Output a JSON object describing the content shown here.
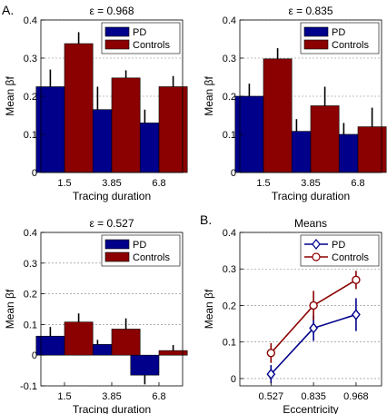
{
  "panel_labels": {
    "a": "A.",
    "b": "B."
  },
  "colors": {
    "pd": "#00008b",
    "controls": "#8b0000",
    "grid": "#808080"
  },
  "chart_data": [
    {
      "type": "bar",
      "title": "ε = 0.968",
      "xlabel": "Tracing duration",
      "ylabel": "Mean βf",
      "categories": [
        "1.5",
        "3.85",
        "6.8"
      ],
      "ylim": [
        0,
        0.4
      ],
      "yticks": [
        "0",
        "0.1",
        "0.2",
        "0.3",
        "0.4"
      ],
      "grid": "horizontal dashed",
      "legend_position": "top-right",
      "series": [
        {
          "name": "PD",
          "values": [
            0.225,
            0.165,
            0.13
          ],
          "errors": [
            0.045,
            0.06,
            0.035
          ]
        },
        {
          "name": "Controls",
          "values": [
            0.338,
            0.248,
            0.225
          ],
          "errors": [
            0.03,
            0.02,
            0.028
          ]
        }
      ]
    },
    {
      "type": "bar",
      "title": "ε = 0.835",
      "xlabel": "Tracing duration",
      "ylabel": "Mean βf",
      "categories": [
        "1.5",
        "3.85",
        "6.8"
      ],
      "ylim": [
        0,
        0.4
      ],
      "yticks": [
        "0",
        "0.1",
        "0.2",
        "0.3",
        "0.4"
      ],
      "grid": "horizontal dashed",
      "legend_position": "top-right",
      "series": [
        {
          "name": "PD",
          "values": [
            0.2,
            0.108,
            0.1
          ],
          "errors": [
            0.033,
            0.032,
            0.03
          ]
        },
        {
          "name": "Controls",
          "values": [
            0.298,
            0.175,
            0.12
          ],
          "errors": [
            0.028,
            0.05,
            0.05
          ]
        }
      ]
    },
    {
      "type": "bar",
      "title": "ε = 0.527",
      "xlabel": "Tracing duration",
      "ylabel": "Mean βf",
      "categories": [
        "1.5",
        "3.85",
        "6.8"
      ],
      "ylim": [
        -0.1,
        0.4
      ],
      "yticks": [
        "-0.1",
        "0",
        "0.1",
        "0.2",
        "0.3",
        "0.4"
      ],
      "grid": "horizontal dashed",
      "legend_position": "top-right",
      "series": [
        {
          "name": "PD",
          "values": [
            0.062,
            0.035,
            -0.065
          ],
          "errors": [
            0.03,
            0.015,
            0.03
          ]
        },
        {
          "name": "Controls",
          "values": [
            0.108,
            0.085,
            0.015
          ],
          "errors": [
            0.028,
            0.035,
            0.018
          ]
        }
      ]
    },
    {
      "type": "line",
      "title": "Means",
      "xlabel": "Eccentricity",
      "ylabel": "Mean βf",
      "x": [
        "0.527",
        "0.835",
        "0.968"
      ],
      "ylim": [
        -0.02,
        0.4
      ],
      "yticks": [
        "0",
        "0.1",
        "0.2",
        "0.3",
        "0.4"
      ],
      "grid": "horizontal dashed",
      "legend_position": "top-right",
      "series": [
        {
          "name": "PD",
          "marker": "diamond",
          "values": [
            0.012,
            0.138,
            0.175
          ],
          "errors": [
            0.025,
            0.035,
            0.045
          ]
        },
        {
          "name": "Controls",
          "marker": "circle",
          "values": [
            0.07,
            0.2,
            0.27
          ],
          "errors": [
            0.027,
            0.04,
            0.025
          ]
        }
      ]
    }
  ]
}
